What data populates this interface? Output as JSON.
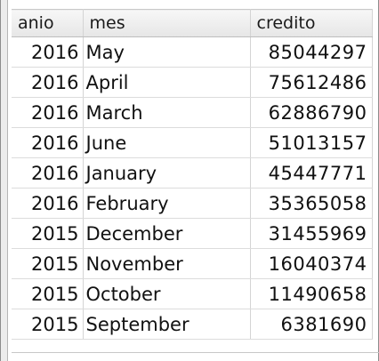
{
  "table": {
    "columns": [
      "anio",
      "mes",
      "credito"
    ],
    "rows": [
      {
        "anio": "2016",
        "mes": "May",
        "credito": "85044297"
      },
      {
        "anio": "2016",
        "mes": "April",
        "credito": "75612486"
      },
      {
        "anio": "2016",
        "mes": "March",
        "credito": "62886790"
      },
      {
        "anio": "2016",
        "mes": "June",
        "credito": "51013157"
      },
      {
        "anio": "2016",
        "mes": "January",
        "credito": "45447771"
      },
      {
        "anio": "2016",
        "mes": "February",
        "credito": "35365058"
      },
      {
        "anio": "2015",
        "mes": "December",
        "credito": "31455969"
      },
      {
        "anio": "2015",
        "mes": "November",
        "credito": "16040374"
      },
      {
        "anio": "2015",
        "mes": "October",
        "credito": "11490658"
      },
      {
        "anio": "2015",
        "mes": "September",
        "credito": "6381690"
      }
    ]
  }
}
